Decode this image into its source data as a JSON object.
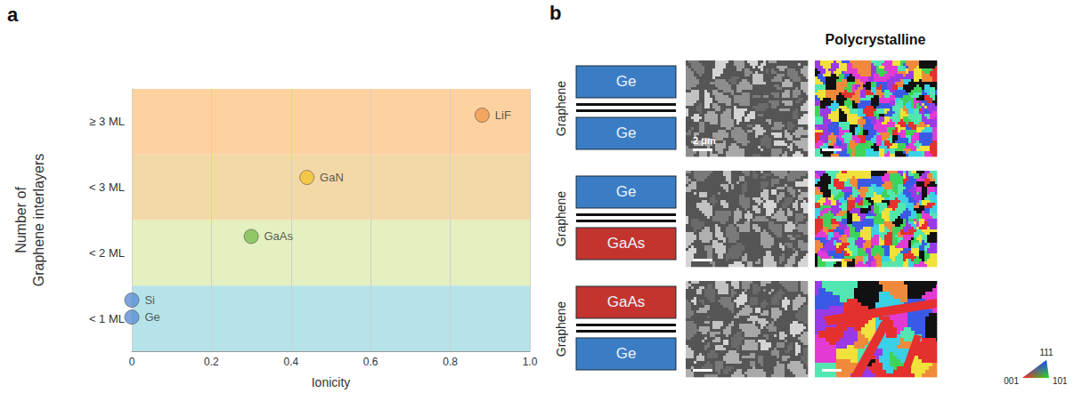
{
  "chart_data": {
    "type": "scatter",
    "panel_letter": "a",
    "x_label": "Ionicity",
    "y_label": "Number of\nGraphene interlayers",
    "xlim": [
      0,
      1
    ],
    "xticks": [
      0,
      0.2,
      0.4,
      0.6,
      0.8,
      {
        "value": 1,
        "label": "1.0"
      }
    ],
    "ylim": [
      0,
      4
    ],
    "yticks": [
      {
        "value": 0.5,
        "label": "< 1 ML"
      },
      {
        "value": 1.5,
        "label": "< 2 ML"
      },
      {
        "value": 2.5,
        "label": "< 3 ML"
      },
      {
        "value": 3.5,
        "label": "≥ 3 ML"
      }
    ],
    "bands": [
      {
        "from": 0,
        "to": 1,
        "color": "#b5e3e9"
      },
      {
        "from": 1,
        "to": 2,
        "color": "#e4f0bf"
      },
      {
        "from": 2,
        "to": 3,
        "color": "#f4d9a8"
      },
      {
        "from": 3,
        "to": 4,
        "color": "#fdd2a0"
      }
    ],
    "points": [
      {
        "name": "Si",
        "x": 0,
        "y": 0.78,
        "color": "#5a8fd4"
      },
      {
        "name": "Ge",
        "x": 0,
        "y": 0.52,
        "color": "#5a8fd4"
      },
      {
        "name": "GaAs",
        "x": 0.3,
        "y": 1.75,
        "color": "#7cbd4f"
      },
      {
        "name": "GaN",
        "x": 0.44,
        "y": 2.65,
        "color": "#f5c22f"
      },
      {
        "name": "LiF",
        "x": 0.88,
        "y": 3.6,
        "color": "#f19a4e"
      }
    ],
    "grid": true
  },
  "panel_b": {
    "letter": "b",
    "title": "Polycrystalline",
    "rows": [
      {
        "interlayer": "Graphene",
        "top": {
          "label": "Ge",
          "color": "#3b7dc4"
        },
        "bottom": {
          "label": "Ge",
          "color": "#3b7dc4"
        },
        "scale_bar": "2 μm"
      },
      {
        "interlayer": "Graphene",
        "top": {
          "label": "Ge",
          "color": "#3b7dc4"
        },
        "bottom": {
          "label": "GaAs",
          "color": "#c3342f"
        }
      },
      {
        "interlayer": "Graphene",
        "top": {
          "label": "GaAs",
          "color": "#c3342f"
        },
        "bottom": {
          "label": "Ge",
          "color": "#3b7dc4"
        }
      }
    ],
    "orientation_key": {
      "top": "111",
      "left": "001",
      "right": "101"
    }
  }
}
